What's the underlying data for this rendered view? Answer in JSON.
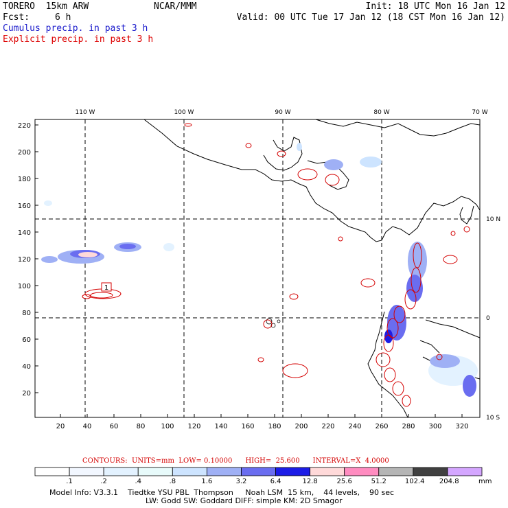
{
  "header": {
    "title_left": "TORERO  15km ARW",
    "title_center": "NCAR/MMM",
    "init": "Init: 18 UTC Mon 16 Jan 12",
    "fcst_label": "Fcst:",
    "fcst_value": "6 h",
    "valid": "Valid: 00 UTC Tue 17 Jan 12 (18 CST Mon 16 Jan 12)",
    "field1": "Cumulus precip. in past 3 h",
    "field2": "Explicit precip. in past 3 h"
  },
  "colors": {
    "field1": "#1a1acc",
    "field2": "#dd0000",
    "contour_red": "#d40000"
  },
  "map": {
    "lon_labels": [
      "110 W",
      "100 W",
      "90 W",
      "80 W",
      "70 W"
    ],
    "lat_labels": [
      "10 N",
      "0",
      "10 S"
    ],
    "y_ticks": [
      "220",
      "200",
      "180",
      "160",
      "140",
      "120",
      "100",
      "80",
      "60",
      "40",
      "20"
    ],
    "x_ticks": [
      "20",
      "40",
      "60",
      "80",
      "100",
      "120",
      "140",
      "160",
      "180",
      "200",
      "220",
      "240",
      "260",
      "280",
      "300",
      "320"
    ],
    "contour_box_label": "1"
  },
  "contours": {
    "text": "CONTOURS:  UNITS=mm  LOW= 0.10000      HIGH=  25.600      INTERVAL=X  4.0000"
  },
  "colorbar": {
    "labels": [
      ".1",
      ".2",
      ".4",
      ".8",
      "1.6",
      "3.2",
      "6.4",
      "12.8",
      "25.6",
      "51.2",
      "102.4",
      "204.8"
    ],
    "unit": "mm",
    "colors": [
      "#ffffff",
      "#f2f7ff",
      "#e3f2ff",
      "#e8fbfb",
      "#cde4ff",
      "#9fb0f5",
      "#6a6df0",
      "#1c1ce6",
      "#ffd9d9",
      "#ff8cc0",
      "#b5b5b5",
      "#404040",
      "#d4a6ff"
    ]
  },
  "model_info": {
    "line1": "Model Info: V3.3.1    Tiedtke YSU PBL  Thompson     Noah LSM  15 km,    44 levels,    90 sec",
    "line2": "LW: Godd SW: Goddard DIFF: simple KM: 2D Smagor"
  }
}
